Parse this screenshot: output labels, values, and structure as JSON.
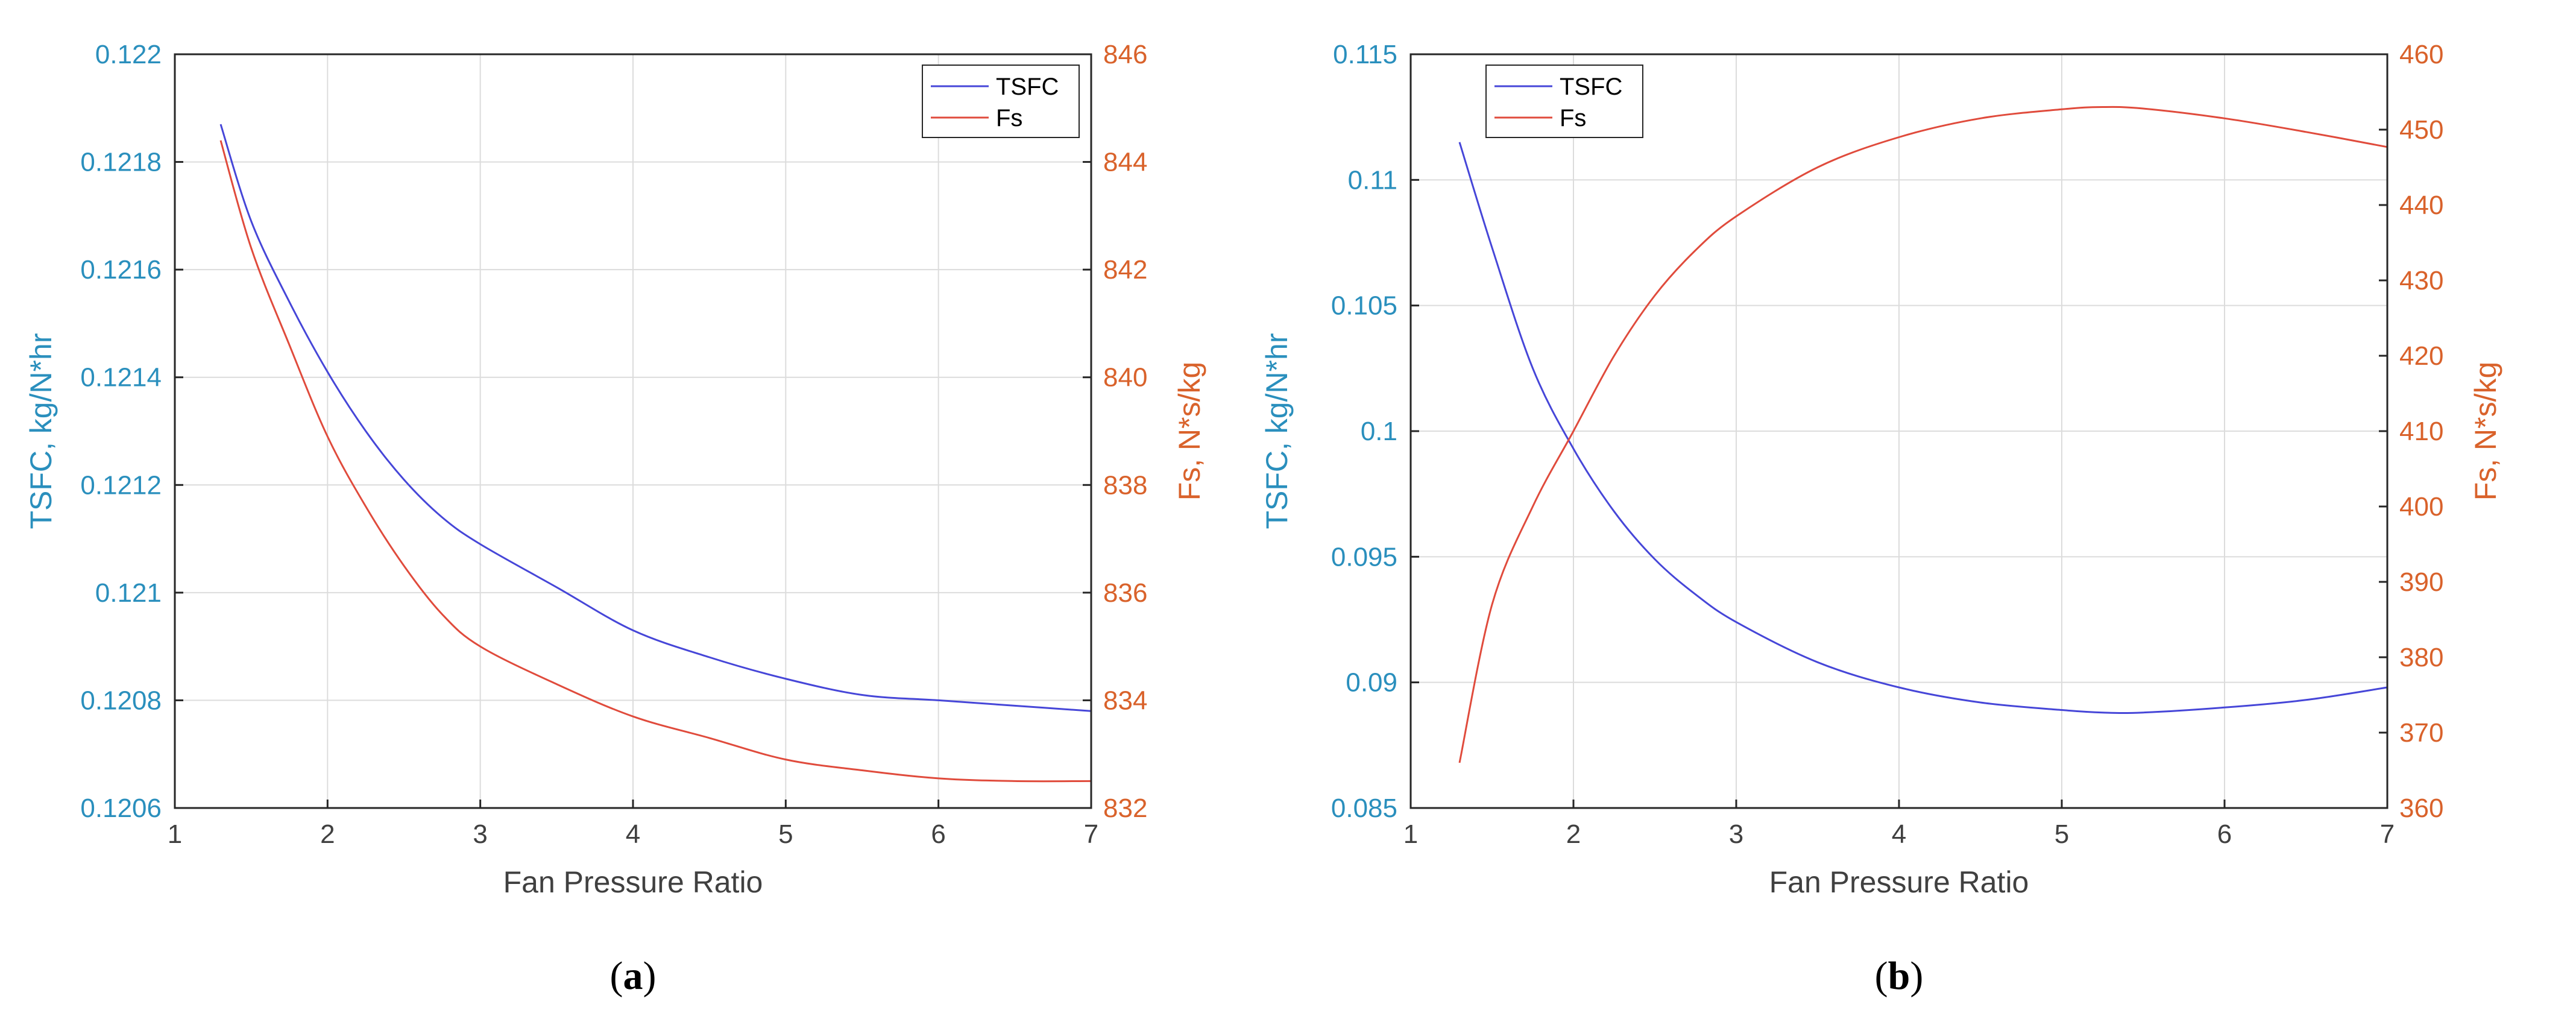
{
  "chart_data": [
    {
      "type": "line",
      "caption_open": "(",
      "caption_letter": "a",
      "caption_close": ")",
      "xlabel": "Fan Pressure Ratio",
      "ylabel_left": "TSFC, kg/N*hr",
      "ylabel_right": "Fs, N*s/kg",
      "xlim": [
        1,
        7
      ],
      "ylim_left": [
        0.1206,
        0.122
      ],
      "ylim_right": [
        832,
        846
      ],
      "x_ticks": [
        "1",
        "2",
        "3",
        "4",
        "5",
        "6",
        "7"
      ],
      "y_left_ticks": [
        "0.1206",
        "0.1208",
        "0.121",
        "0.1212",
        "0.1214",
        "0.1216",
        "0.1218",
        "0.122"
      ],
      "y_right_ticks": [
        "832",
        "834",
        "836",
        "838",
        "840",
        "842",
        "844",
        "846"
      ],
      "grid": true,
      "legend_position": "top-right",
      "series": [
        {
          "name": "TSFC",
          "axis": "left",
          "color": "#4646d8",
          "x": [
            1.3,
            1.5,
            1.75,
            2.0,
            2.25,
            2.5,
            2.75,
            3.0,
            3.5,
            4.0,
            4.5,
            5.0,
            5.5,
            6.0,
            6.5,
            7.0
          ],
          "y": [
            0.12187,
            0.12169,
            0.12154,
            0.12141,
            0.1213,
            0.12121,
            0.12114,
            0.12109,
            0.12101,
            0.12093,
            0.12088,
            0.12084,
            0.12081,
            0.1208,
            0.12079,
            0.12078
          ]
        },
        {
          "name": "Fs",
          "axis": "right",
          "color": "#e04b3c",
          "x": [
            1.3,
            1.5,
            1.75,
            2.0,
            2.25,
            2.5,
            2.75,
            3.0,
            3.5,
            4.0,
            4.5,
            5.0,
            5.5,
            6.0,
            6.5,
            7.0
          ],
          "y": [
            844.4,
            842.4,
            840.6,
            838.9,
            837.6,
            836.5,
            835.6,
            835.0,
            834.3,
            833.7,
            833.3,
            832.9,
            832.7,
            832.55,
            832.5,
            832.5
          ]
        }
      ]
    },
    {
      "type": "line",
      "caption_open": "(",
      "caption_letter": "b",
      "caption_close": ")",
      "xlabel": "Fan Pressure Ratio",
      "ylabel_left": "TSFC, kg/N*hr",
      "ylabel_right": "Fs, N*s/kg",
      "xlim": [
        1,
        7
      ],
      "ylim_left": [
        0.085,
        0.115
      ],
      "ylim_right": [
        360,
        460
      ],
      "x_ticks": [
        "1",
        "2",
        "3",
        "4",
        "5",
        "6",
        "7"
      ],
      "y_left_ticks": [
        "0.085",
        "0.09",
        "0.095",
        "0.1",
        "0.105",
        "0.11",
        "0.115"
      ],
      "y_right_ticks": [
        "360",
        "370",
        "380",
        "390",
        "400",
        "410",
        "420",
        "430",
        "440",
        "450",
        "460"
      ],
      "grid": true,
      "legend_position": "top-left",
      "series": [
        {
          "name": "TSFC",
          "axis": "left",
          "color": "#4646d8",
          "x": [
            1.3,
            1.5,
            1.75,
            2.0,
            2.25,
            2.5,
            2.75,
            3.0,
            3.5,
            4.0,
            4.5,
            5.0,
            5.25,
            5.5,
            6.0,
            6.5,
            7.0
          ],
          "y": [
            0.1115,
            0.1073,
            0.1025,
            0.0993,
            0.0968,
            0.0949,
            0.0935,
            0.0924,
            0.0908,
            0.0898,
            0.0892,
            0.0889,
            0.0888,
            0.0888,
            0.089,
            0.0893,
            0.0898
          ]
        },
        {
          "name": "Fs",
          "axis": "right",
          "color": "#e04b3c",
          "x": [
            1.3,
            1.5,
            1.75,
            2.0,
            2.25,
            2.5,
            2.75,
            3.0,
            3.5,
            4.0,
            4.5,
            5.0,
            5.25,
            5.5,
            6.0,
            6.5,
            7.0
          ],
          "y": [
            366,
            387,
            400,
            410,
            420,
            428,
            434,
            438.5,
            445,
            449,
            451.5,
            452.7,
            453,
            452.8,
            451.5,
            449.7,
            447.7
          ]
        }
      ]
    }
  ]
}
